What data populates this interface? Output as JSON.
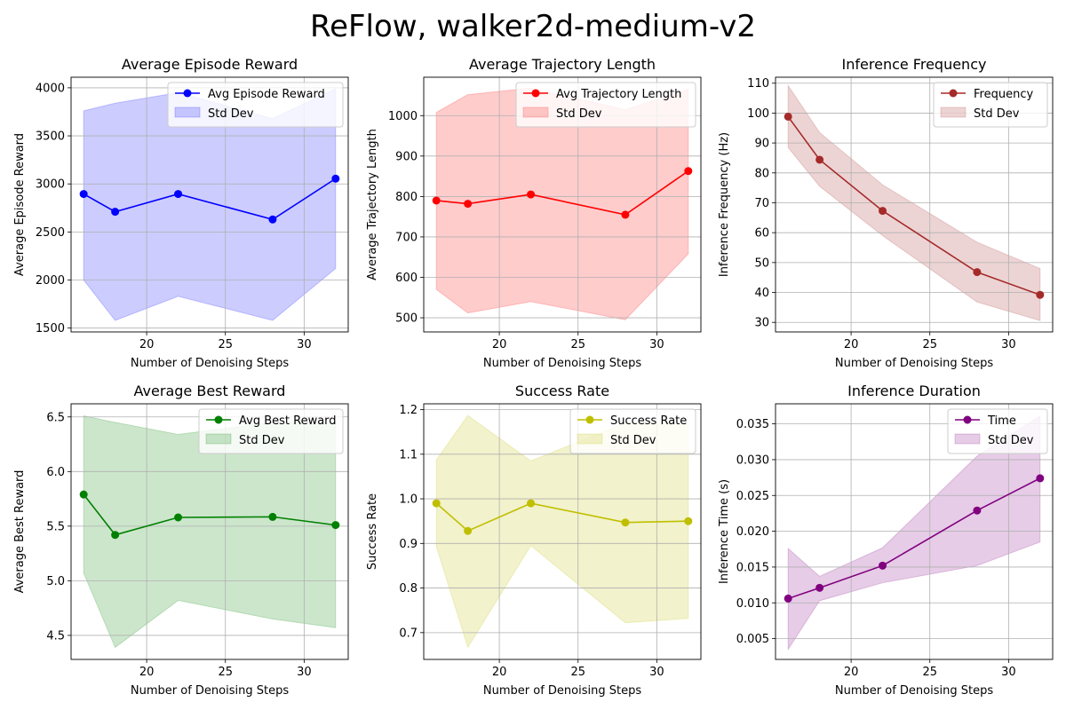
{
  "figure": {
    "suptitle": "ReFlow, walker2d-medium-v2"
  },
  "chart_data": [
    {
      "type": "line",
      "title": "Average Episode Reward",
      "xlabel": "Number of Denoising Steps",
      "ylabel": "Average Episode Reward",
      "xlim": [
        15.2,
        32.8
      ],
      "ylim": [
        1460,
        4110
      ],
      "xticks": [
        20,
        25,
        30
      ],
      "yticks": [
        1500,
        2000,
        2500,
        3000,
        3500,
        4000
      ],
      "xtick_labels": [
        "20",
        "25",
        "30"
      ],
      "ytick_labels": [
        "1500",
        "2000",
        "2500",
        "3000",
        "3500",
        "4000"
      ],
      "grid": true,
      "legend_loc": "upper right",
      "color": "#0000ff",
      "series": [
        {
          "name": "Avg Episode Reward",
          "x": [
            16,
            18,
            22,
            28,
            32
          ],
          "y": [
            2895,
            2710,
            2895,
            2630,
            3055
          ]
        },
        {
          "name": "Std Dev",
          "kind": "band",
          "x": [
            16,
            18,
            22,
            28,
            32
          ],
          "lower": [
            2000,
            1580,
            1830,
            1580,
            2120
          ],
          "upper": [
            3760,
            3840,
            3950,
            3680,
            3990
          ]
        }
      ]
    },
    {
      "type": "line",
      "title": "Average Trajectory Length",
      "xlabel": "Number of Denoising Steps",
      "ylabel": "Average Trajectory Length",
      "xlim": [
        15.2,
        32.8
      ],
      "ylim": [
        465,
        1095
      ],
      "xticks": [
        20,
        25,
        30
      ],
      "yticks": [
        500,
        600,
        700,
        800,
        900,
        1000
      ],
      "xtick_labels": [
        "20",
        "25",
        "30"
      ],
      "ytick_labels": [
        "500",
        "600",
        "700",
        "800",
        "900",
        "1000"
      ],
      "grid": true,
      "legend_loc": "upper right",
      "color": "#ff0000",
      "series": [
        {
          "name": "Avg Trajectory Length",
          "x": [
            16,
            18,
            22,
            28,
            32
          ],
          "y": [
            790,
            782,
            805,
            755,
            863
          ]
        },
        {
          "name": "Std Dev",
          "kind": "band",
          "x": [
            16,
            18,
            22,
            28,
            32
          ],
          "lower": [
            570,
            512,
            540,
            495,
            658
          ],
          "upper": [
            1008,
            1052,
            1068,
            1015,
            1065
          ]
        }
      ]
    },
    {
      "type": "line",
      "title": "Inference Frequency",
      "xlabel": "Number of Denoising Steps",
      "ylabel": "Inference Frequency (Hz)",
      "xlim": [
        15.2,
        32.8
      ],
      "ylim": [
        26.8,
        112
      ],
      "xticks": [
        20,
        25,
        30
      ],
      "yticks": [
        30,
        40,
        50,
        60,
        70,
        80,
        90,
        100,
        110
      ],
      "xtick_labels": [
        "20",
        "25",
        "30"
      ],
      "ytick_labels": [
        "30",
        "40",
        "50",
        "60",
        "70",
        "80",
        "90",
        "100",
        "110"
      ],
      "grid": true,
      "legend_loc": "upper right",
      "color": "#a52a2a",
      "series": [
        {
          "name": "Frequency",
          "x": [
            16,
            18,
            22,
            28,
            32
          ],
          "y": [
            98.8,
            84.4,
            67.3,
            46.8,
            39.2
          ]
        },
        {
          "name": "Std Dev",
          "kind": "band",
          "x": [
            16,
            18,
            22,
            28,
            32
          ],
          "lower": [
            88.5,
            75.5,
            59.0,
            36.8,
            30.6
          ],
          "upper": [
            109.2,
            93.5,
            76.0,
            56.8,
            48.0
          ]
        }
      ]
    },
    {
      "type": "line",
      "title": "Average Best Reward",
      "xlabel": "Number of Denoising Steps",
      "ylabel": "Average Best Reward",
      "xlim": [
        15.2,
        32.8
      ],
      "ylim": [
        4.28,
        6.62
      ],
      "xticks": [
        20,
        25,
        30
      ],
      "yticks": [
        4.5,
        5.0,
        5.5,
        6.0,
        6.5
      ],
      "xtick_labels": [
        "20",
        "25",
        "30"
      ],
      "ytick_labels": [
        "4.5",
        "5.0",
        "5.5",
        "6.0",
        "6.5"
      ],
      "grid": true,
      "legend_loc": "upper right",
      "color": "#008000",
      "series": [
        {
          "name": "Avg Best Reward",
          "x": [
            16,
            18,
            22,
            28,
            32
          ],
          "y": [
            5.79,
            5.42,
            5.58,
            5.585,
            5.51
          ]
        },
        {
          "name": "Std Dev",
          "kind": "band",
          "x": [
            16,
            18,
            22,
            28,
            32
          ],
          "lower": [
            5.07,
            4.39,
            4.82,
            4.65,
            4.57
          ],
          "upper": [
            6.51,
            6.45,
            6.34,
            6.45,
            6.45
          ]
        }
      ]
    },
    {
      "type": "line",
      "title": "Success Rate",
      "xlabel": "Number of Denoising Steps",
      "ylabel": "Success Rate",
      "xlim": [
        15.2,
        32.8
      ],
      "ylim": [
        0.64,
        1.213
      ],
      "xticks": [
        20,
        25,
        30
      ],
      "yticks": [
        0.7,
        0.8,
        0.9,
        1.0,
        1.1,
        1.2
      ],
      "xtick_labels": [
        "20",
        "25",
        "30"
      ],
      "ytick_labels": [
        "0.7",
        "0.8",
        "0.9",
        "1.0",
        "1.1",
        "1.2"
      ],
      "grid": true,
      "legend_loc": "upper right",
      "color": "#bfbf00",
      "series": [
        {
          "name": "Success Rate",
          "x": [
            16,
            18,
            22,
            28,
            32
          ],
          "y": [
            0.99,
            0.928,
            0.99,
            0.947,
            0.95
          ]
        },
        {
          "name": "Std Dev",
          "kind": "band",
          "x": [
            16,
            18,
            22,
            28,
            32
          ],
          "lower": [
            0.893,
            0.667,
            0.895,
            0.722,
            0.732
          ],
          "upper": [
            1.087,
            1.187,
            1.085,
            1.17,
            1.168
          ]
        }
      ]
    },
    {
      "type": "line",
      "title": "Inference Duration",
      "xlabel": "Number of Denoising Steps",
      "ylabel": "Inference Time (s)",
      "xlim": [
        15.2,
        32.8
      ],
      "ylim": [
        0.0021,
        0.0378
      ],
      "xticks": [
        20,
        25,
        30
      ],
      "yticks": [
        0.005,
        0.01,
        0.015,
        0.02,
        0.025,
        0.03,
        0.035
      ],
      "xtick_labels": [
        "20",
        "25",
        "30"
      ],
      "ytick_labels": [
        "0.005",
        "0.010",
        "0.015",
        "0.020",
        "0.025",
        "0.030",
        "0.035"
      ],
      "grid": true,
      "legend_loc": "upper right",
      "color": "#800080",
      "series": [
        {
          "name": "Time",
          "x": [
            16,
            18,
            22,
            28,
            32
          ],
          "y": [
            0.0106,
            0.0121,
            0.0152,
            0.0229,
            0.0274
          ]
        },
        {
          "name": "Std Dev",
          "kind": "band",
          "x": [
            16,
            18,
            22,
            28,
            32
          ],
          "lower": [
            0.0035,
            0.0103,
            0.0128,
            0.0152,
            0.0185
          ],
          "upper": [
            0.0176,
            0.0137,
            0.0177,
            0.0305,
            0.0361
          ]
        }
      ]
    }
  ]
}
